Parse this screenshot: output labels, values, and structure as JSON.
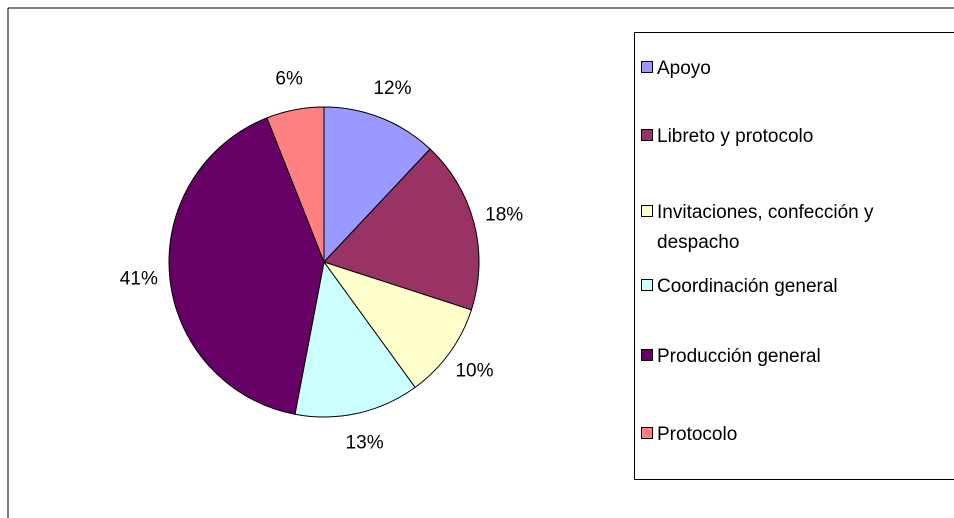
{
  "chart_data": {
    "type": "pie",
    "categories": [
      "Apoyo",
      "Libreto y protocolo",
      "Invitaciones, confección y despacho",
      "Coordinación general",
      "Producción general",
      "Protocolo"
    ],
    "values": [
      12,
      18,
      10,
      13,
      41,
      6
    ],
    "colors": [
      "#9999ff",
      "#993366",
      "#ffffcc",
      "#ccffff",
      "#660066",
      "#ff8080"
    ],
    "legend": "right"
  }
}
